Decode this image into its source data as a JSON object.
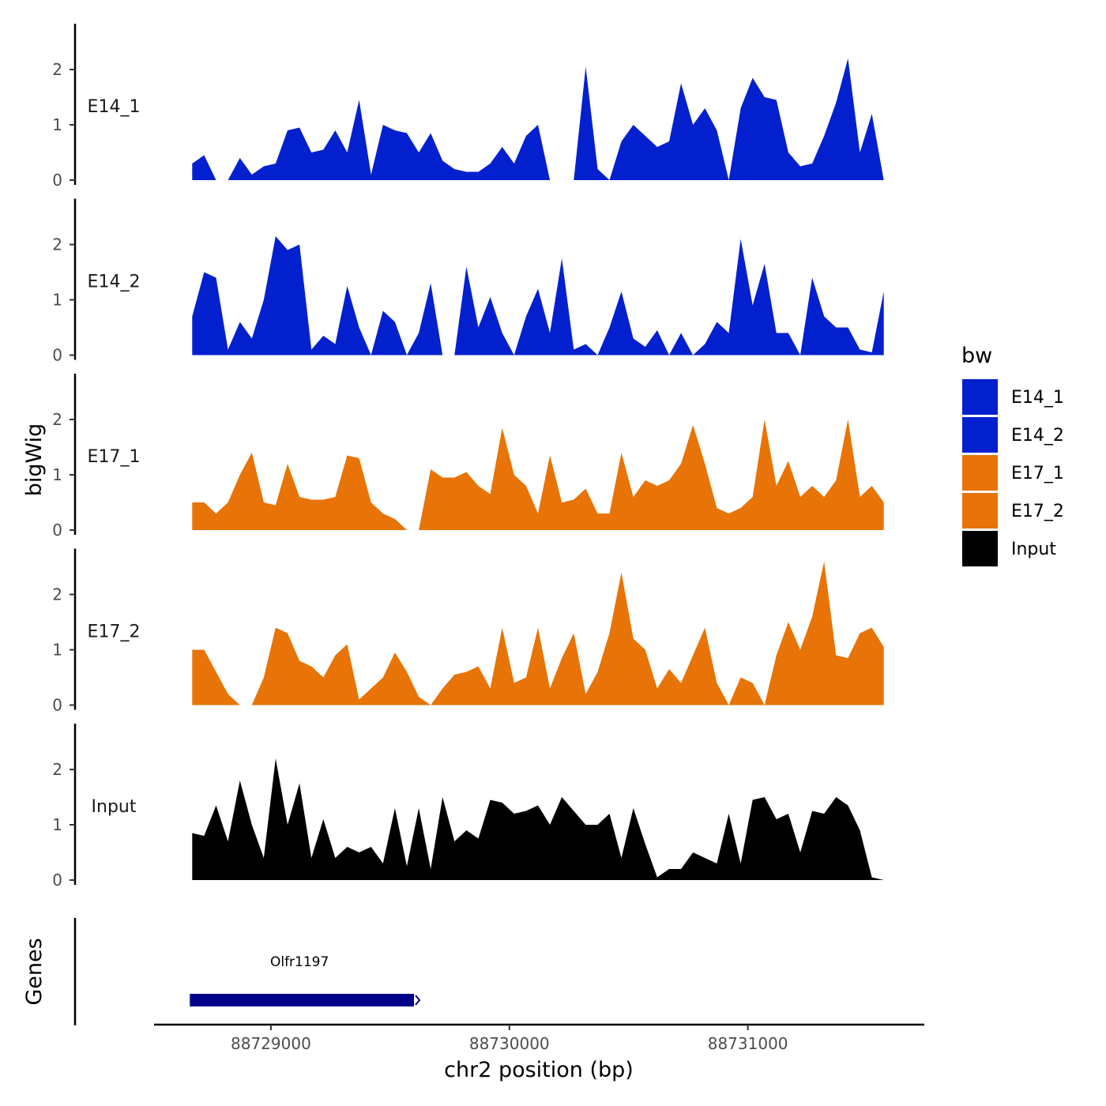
{
  "chart_data": {
    "type": "area",
    "xlabel": "chr2 position (bp)",
    "ylabel": "bigWig",
    "genes_label": "Genes",
    "legend_title": "bw",
    "xlim": [
      88728510,
      88731740
    ],
    "ylim": [
      0,
      2.8
    ],
    "x_ticks": [
      88729000,
      88730000,
      88731000
    ],
    "x_tick_labels": [
      "88729000",
      "88730000",
      "88731000"
    ],
    "y_ticks": [
      0,
      1,
      2
    ],
    "y_tick_labels": [
      "0",
      "1",
      "2"
    ],
    "legend": [
      {
        "label": "E14_1",
        "color": "#0320CF"
      },
      {
        "label": "E14_2",
        "color": "#0320CF"
      },
      {
        "label": "E17_1",
        "color": "#E87306"
      },
      {
        "label": "E17_2",
        "color": "#E87306"
      },
      {
        "label": "Input",
        "color": "#000000"
      }
    ],
    "x": [
      88728670,
      88728720,
      88728770,
      88728820,
      88728870,
      88728920,
      88728970,
      88729020,
      88729070,
      88729120,
      88729170,
      88729220,
      88729270,
      88729320,
      88729370,
      88729420,
      88729470,
      88729520,
      88729570,
      88729620,
      88729670,
      88729720,
      88729770,
      88729820,
      88729870,
      88729920,
      88729970,
      88730020,
      88730070,
      88730120,
      88730170,
      88730220,
      88730270,
      88730320,
      88730370,
      88730420,
      88730470,
      88730520,
      88730570,
      88730620,
      88730670,
      88730720,
      88730770,
      88730820,
      88730870,
      88730920,
      88730970,
      88731020,
      88731070,
      88731120,
      88731170,
      88731220,
      88731270,
      88731320,
      88731370,
      88731420,
      88731470,
      88731520,
      88731570
    ],
    "series": [
      {
        "name": "E14_1",
        "color": "#0320CF",
        "values": [
          0.3,
          0.45,
          0.0,
          0.0,
          0.4,
          0.1,
          0.25,
          0.3,
          0.9,
          0.95,
          0.5,
          0.55,
          0.9,
          0.5,
          1.45,
          0.1,
          1.0,
          0.9,
          0.85,
          0.5,
          0.85,
          0.35,
          0.2,
          0.15,
          0.15,
          0.3,
          0.6,
          0.3,
          0.8,
          1.0,
          0.0,
          0.0,
          0.0,
          2.05,
          0.2,
          0.0,
          0.7,
          1.0,
          0.8,
          0.6,
          0.7,
          1.75,
          1.0,
          1.3,
          0.9,
          0.0,
          1.3,
          1.85,
          1.5,
          1.45,
          0.5,
          0.25,
          0.3,
          0.8,
          1.4,
          2.2,
          0.5,
          1.2,
          0.0
        ]
      },
      {
        "name": "E14_2",
        "color": "#0320CF",
        "values": [
          0.7,
          1.5,
          1.4,
          0.1,
          0.6,
          0.3,
          1.0,
          2.15,
          1.9,
          2.0,
          0.1,
          0.35,
          0.2,
          1.25,
          0.5,
          0.0,
          0.8,
          0.6,
          0.0,
          0.4,
          1.3,
          0.0,
          0.0,
          1.6,
          0.5,
          1.05,
          0.4,
          0.0,
          0.7,
          1.2,
          0.4,
          1.75,
          0.1,
          0.2,
          0.0,
          0.5,
          1.15,
          0.3,
          0.15,
          0.45,
          0.0,
          0.4,
          0.0,
          0.2,
          0.6,
          0.4,
          2.1,
          0.9,
          1.65,
          0.4,
          0.4,
          0.0,
          1.4,
          0.7,
          0.5,
          0.5,
          0.1,
          0.05,
          1.15
        ]
      },
      {
        "name": "E17_1",
        "color": "#E87306",
        "values": [
          0.5,
          0.5,
          0.3,
          0.5,
          1.0,
          1.4,
          0.5,
          0.45,
          1.2,
          0.6,
          0.55,
          0.55,
          0.6,
          1.35,
          1.3,
          0.5,
          0.3,
          0.2,
          0.0,
          0.0,
          1.1,
          0.95,
          0.95,
          1.05,
          0.8,
          0.65,
          1.85,
          1.0,
          0.8,
          0.3,
          1.35,
          0.5,
          0.55,
          0.75,
          0.3,
          0.3,
          1.4,
          0.6,
          0.9,
          0.8,
          0.9,
          1.2,
          1.9,
          1.2,
          0.4,
          0.3,
          0.4,
          0.6,
          2.0,
          0.8,
          1.25,
          0.6,
          0.8,
          0.6,
          0.9,
          2.0,
          0.6,
          0.8,
          0.5
        ]
      },
      {
        "name": "E17_2",
        "color": "#E87306",
        "values": [
          1.0,
          1.0,
          0.6,
          0.2,
          0.0,
          0.0,
          0.5,
          1.4,
          1.3,
          0.8,
          0.7,
          0.5,
          0.9,
          1.1,
          0.1,
          0.3,
          0.5,
          0.95,
          0.6,
          0.15,
          0.0,
          0.3,
          0.55,
          0.6,
          0.7,
          0.3,
          1.4,
          0.4,
          0.5,
          1.4,
          0.3,
          0.85,
          1.3,
          0.2,
          0.6,
          1.3,
          2.4,
          1.2,
          1.0,
          0.3,
          0.65,
          0.4,
          0.9,
          1.4,
          0.4,
          0.0,
          0.5,
          0.4,
          0.0,
          0.9,
          1.5,
          1.0,
          1.6,
          2.6,
          0.9,
          0.85,
          1.3,
          1.4,
          1.05
        ]
      },
      {
        "name": "Input",
        "color": "#000000",
        "values": [
          0.85,
          0.8,
          1.35,
          0.7,
          1.8,
          1.0,
          0.4,
          2.2,
          1.0,
          1.75,
          0.4,
          1.1,
          0.4,
          0.6,
          0.5,
          0.6,
          0.3,
          1.3,
          0.25,
          1.3,
          0.2,
          1.5,
          0.7,
          0.9,
          0.75,
          1.45,
          1.4,
          1.2,
          1.25,
          1.35,
          1.0,
          1.5,
          1.25,
          1.0,
          1.0,
          1.2,
          0.4,
          1.3,
          0.65,
          0.05,
          0.2,
          0.2,
          0.5,
          0.4,
          0.3,
          1.2,
          0.3,
          1.45,
          1.5,
          1.1,
          1.2,
          0.5,
          1.25,
          1.2,
          1.5,
          1.35,
          0.9,
          0.05,
          0.0
        ]
      }
    ],
    "genes": [
      {
        "name": "Olfr1197",
        "start": 88728660,
        "end": 88729600,
        "color": "#00008B"
      }
    ]
  }
}
